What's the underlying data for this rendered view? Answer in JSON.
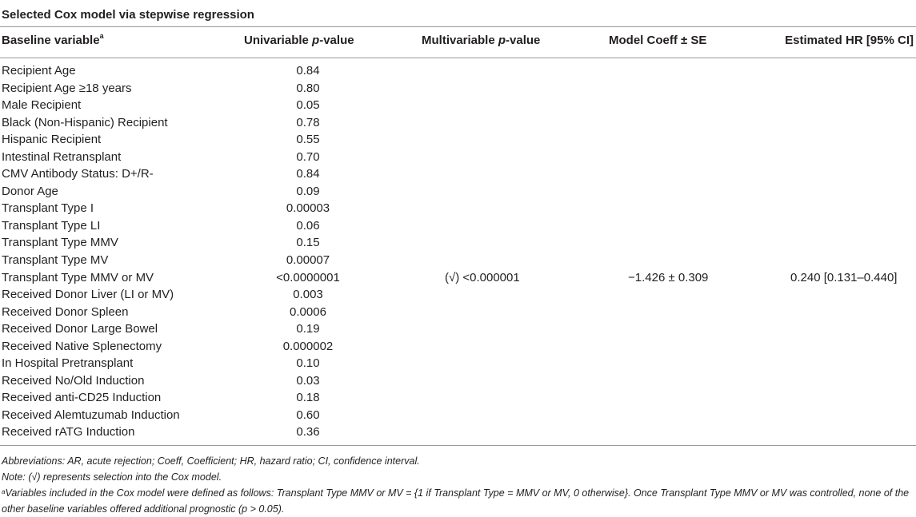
{
  "title": "Selected Cox model via stepwise regression",
  "headers": {
    "baseline": "Baseline variable",
    "baseline_sup": "a",
    "univariable_pre": "Univariable ",
    "univariable_it": "p",
    "univariable_post": "-value",
    "multivariable_pre": "Multivariable ",
    "multivariable_it": "p",
    "multivariable_post": "-value",
    "coeff": "Model Coeff ± SE",
    "hr": "Estimated HR [95% CI]"
  },
  "rows": [
    {
      "variable": "Recipient Age",
      "univariable": "0.84",
      "multivariable": "",
      "coeff": "",
      "hr": ""
    },
    {
      "variable": "Recipient Age ≥18 years",
      "univariable": "0.80",
      "multivariable": "",
      "coeff": "",
      "hr": ""
    },
    {
      "variable": "Male Recipient",
      "univariable": "0.05",
      "multivariable": "",
      "coeff": "",
      "hr": ""
    },
    {
      "variable": "Black (Non-Hispanic) Recipient",
      "univariable": "0.78",
      "multivariable": "",
      "coeff": "",
      "hr": ""
    },
    {
      "variable": "Hispanic Recipient",
      "univariable": "0.55",
      "multivariable": "",
      "coeff": "",
      "hr": ""
    },
    {
      "variable": "Intestinal Retransplant",
      "univariable": "0.70",
      "multivariable": "",
      "coeff": "",
      "hr": ""
    },
    {
      "variable": "CMV Antibody Status: D+/R-",
      "univariable": "0.84",
      "multivariable": "",
      "coeff": "",
      "hr": ""
    },
    {
      "variable": "Donor Age",
      "univariable": "0.09",
      "multivariable": "",
      "coeff": "",
      "hr": ""
    },
    {
      "variable": "Transplant Type I",
      "univariable": "0.00003",
      "multivariable": "",
      "coeff": "",
      "hr": ""
    },
    {
      "variable": "Transplant Type LI",
      "univariable": "0.06",
      "multivariable": "",
      "coeff": "",
      "hr": ""
    },
    {
      "variable": "Transplant Type MMV",
      "univariable": "0.15",
      "multivariable": "",
      "coeff": "",
      "hr": ""
    },
    {
      "variable": "Transplant Type MV",
      "univariable": "0.00007",
      "multivariable": "",
      "coeff": "",
      "hr": ""
    },
    {
      "variable": "Transplant Type MMV or MV",
      "univariable": "<0.0000001",
      "multivariable": "(√) <0.000001",
      "coeff": "−1.426 ± 0.309",
      "hr": "0.240 [0.131–0.440]"
    },
    {
      "variable": "Received Donor Liver (LI or MV)",
      "univariable": "0.003",
      "multivariable": "",
      "coeff": "",
      "hr": ""
    },
    {
      "variable": "Received Donor Spleen",
      "univariable": "0.0006",
      "multivariable": "",
      "coeff": "",
      "hr": ""
    },
    {
      "variable": "Received Donor Large Bowel",
      "univariable": "0.19",
      "multivariable": "",
      "coeff": "",
      "hr": ""
    },
    {
      "variable": "Received Native Splenectomy",
      "univariable": "0.000002",
      "multivariable": "",
      "coeff": "",
      "hr": ""
    },
    {
      "variable": "In Hospital Pretransplant",
      "univariable": "0.10",
      "multivariable": "",
      "coeff": "",
      "hr": ""
    },
    {
      "variable": "Received No/Old Induction",
      "univariable": "0.03",
      "multivariable": "",
      "coeff": "",
      "hr": ""
    },
    {
      "variable": "Received anti-CD25 Induction",
      "univariable": "0.18",
      "multivariable": "",
      "coeff": "",
      "hr": ""
    },
    {
      "variable": "Received Alemtuzumab Induction",
      "univariable": "0.60",
      "multivariable": "",
      "coeff": "",
      "hr": ""
    },
    {
      "variable": "Received rATG Induction",
      "univariable": "0.36",
      "multivariable": "",
      "coeff": "",
      "hr": ""
    }
  ],
  "notes": {
    "abbreviations": "Abbreviations: AR, acute rejection; Coeff, Coefficient; HR, hazard ratio; CI, confidence interval.",
    "note": "Note: (√) represents selection into the Cox model.",
    "footnote_sup": "a",
    "footnote": "Variables included in the Cox model were defined as follows: Transplant Type MMV or MV = {1 if Transplant Type = MMV or MV, 0 otherwise}. Once Transplant Type MMV or MV was controlled, none of the other baseline variables offered additional prognostic (p > 0.05)."
  }
}
